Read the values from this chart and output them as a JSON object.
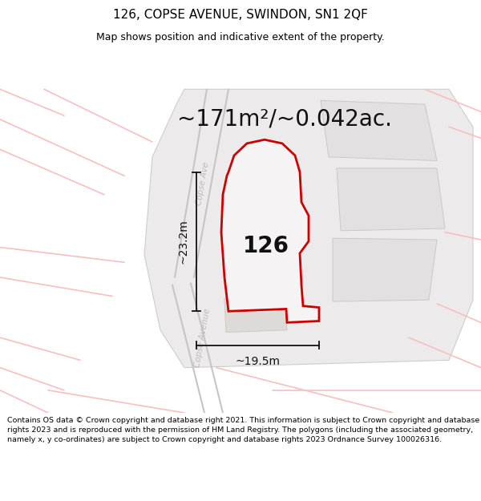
{
  "title": "126, COPSE AVENUE, SWINDON, SN1 2QF",
  "subtitle": "Map shows position and indicative extent of the property.",
  "area_text": "~171m²/~0.042ac.",
  "label_126": "126",
  "dim_vertical": "~23.2m",
  "dim_horizontal": "~19.5m",
  "footer": "Contains OS data © Crown copyright and database right 2021. This information is subject to Crown copyright and database rights 2023 and is reproduced with the permission of HM Land Registry. The polygons (including the associated geometry, namely x, y co-ordinates) are subject to Crown copyright and database rights 2023 Ordnance Survey 100026316.",
  "bg_color": "#f2f0f0",
  "property_fill": "#f0eeee",
  "property_edge": "#cc0000",
  "pink_road": "#f5c0c0",
  "gray_line": "#c8c4c4",
  "block_fill": "#e2e0e0",
  "block_edge": "#ccc8c8",
  "street_color": "#c0bbbb",
  "title_fontsize": 11,
  "subtitle_fontsize": 9,
  "area_fontsize": 20,
  "label_fontsize": 20,
  "dim_fontsize": 10,
  "footer_fontsize": 6.8
}
